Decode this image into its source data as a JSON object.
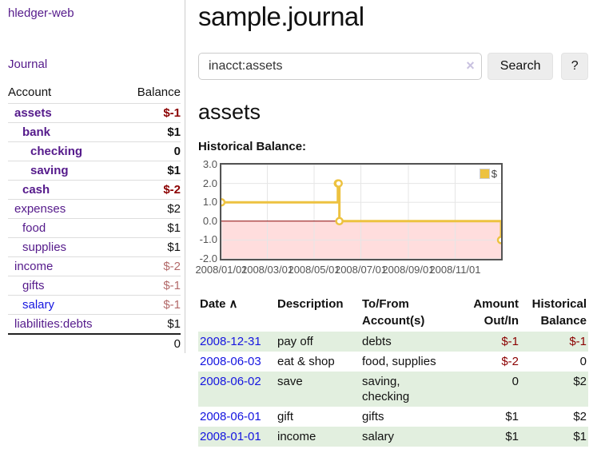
{
  "colors": {
    "link_purple": "#551a8b",
    "link_blue": "#1515e0",
    "negative_strong": "#8b0000",
    "negative_soft": "#b36a6a",
    "row_green": "#e2efdf",
    "chart_gold": "#edc240",
    "chart_negative_region": "#ffdddd",
    "chart_zero_line": "#8b0000",
    "chart_grid": "#e6e6e6",
    "chart_border": "#545454"
  },
  "sidebar": {
    "brand": "hledger-web",
    "journal_link": "Journal",
    "accounts_header": {
      "account": "Account",
      "balance": "Balance"
    },
    "accounts": [
      {
        "name": "assets",
        "depth": 1,
        "bold": true,
        "balance": "$-1",
        "negative": true,
        "blue": false
      },
      {
        "name": "bank",
        "depth": 2,
        "bold": true,
        "balance": "$1",
        "negative": false,
        "blue": false
      },
      {
        "name": "checking",
        "depth": 3,
        "bold": true,
        "balance": "0",
        "negative": false,
        "blue": false
      },
      {
        "name": "saving",
        "depth": 3,
        "bold": true,
        "balance": "$1",
        "negative": false,
        "blue": false
      },
      {
        "name": "cash",
        "depth": 2,
        "bold": true,
        "balance": "$-2",
        "negative": true,
        "blue": false
      },
      {
        "name": "expenses",
        "depth": 1,
        "bold": false,
        "balance": "$2",
        "negative": false,
        "blue": false
      },
      {
        "name": "food",
        "depth": 2,
        "bold": false,
        "balance": "$1",
        "negative": false,
        "blue": false
      },
      {
        "name": "supplies",
        "depth": 2,
        "bold": false,
        "balance": "$1",
        "negative": false,
        "blue": false
      },
      {
        "name": "income",
        "depth": 1,
        "bold": false,
        "balance": "$-2",
        "negative": true,
        "blue": false
      },
      {
        "name": "gifts",
        "depth": 2,
        "bold": false,
        "balance": "$-1",
        "negative": true,
        "blue": false
      },
      {
        "name": "salary",
        "depth": 2,
        "bold": false,
        "balance": "$-1",
        "negative": true,
        "blue": true
      },
      {
        "name": "liabilities:debts",
        "depth": 1,
        "bold": false,
        "balance": "$1",
        "negative": false,
        "blue": false
      }
    ],
    "total": "0"
  },
  "main": {
    "title": "sample.journal",
    "search": {
      "value": "inacct:assets",
      "clear_icon": "×",
      "search_button": "Search",
      "help_button": "?"
    },
    "account_heading": "assets",
    "chart_label": "Historical Balance:"
  },
  "chart_data": {
    "type": "line",
    "step": true,
    "title": "Historical Balance",
    "xlim": [
      "2008-01-01",
      "2008-12-31"
    ],
    "ylim": [
      -2,
      3
    ],
    "y_ticks": [
      3.0,
      2.0,
      1.0,
      0.0,
      -1.0,
      -2.0
    ],
    "x_ticks": [
      "2008/01/01",
      "2008/03/01",
      "2008/05/01",
      "2008/07/01",
      "2008/09/01",
      "2008/11/01"
    ],
    "legend": [
      {
        "label": "$"
      }
    ],
    "legend_position": "top-right",
    "grid": true,
    "negative_region": {
      "from": 0,
      "to": -2
    },
    "series": [
      {
        "name": "$",
        "points": [
          [
            "2008-01-01",
            1
          ],
          [
            "2008-06-01",
            2
          ],
          [
            "2008-06-02",
            2
          ],
          [
            "2008-06-03",
            0
          ],
          [
            "2008-12-31",
            -1
          ]
        ]
      }
    ]
  },
  "register": {
    "headers": {
      "date": "Date",
      "sort_icon": "∧",
      "description": "Description",
      "to_from": "To/From Account(s)",
      "amount": "Amount Out/In",
      "balance": "Historical Balance"
    },
    "rows": [
      {
        "date": "2008-12-31",
        "description": "pay off",
        "to_from": "debts",
        "amount": "$-1",
        "amount_negative": true,
        "balance": "$-1",
        "balance_negative": true
      },
      {
        "date": "2008-06-03",
        "description": "eat & shop",
        "to_from": "food, supplies",
        "amount": "$-2",
        "amount_negative": true,
        "balance": "0",
        "balance_negative": false
      },
      {
        "date": "2008-06-02",
        "description": "save",
        "to_from": "saving,\nchecking",
        "amount": "0",
        "amount_negative": false,
        "balance": "$2",
        "balance_negative": false
      },
      {
        "date": "2008-06-01",
        "description": "gift",
        "to_from": "gifts",
        "amount": "$1",
        "amount_negative": false,
        "balance": "$2",
        "balance_negative": false
      },
      {
        "date": "2008-01-01",
        "description": "income",
        "to_from": "salary",
        "amount": "$1",
        "amount_negative": false,
        "balance": "$1",
        "balance_negative": false
      }
    ]
  }
}
